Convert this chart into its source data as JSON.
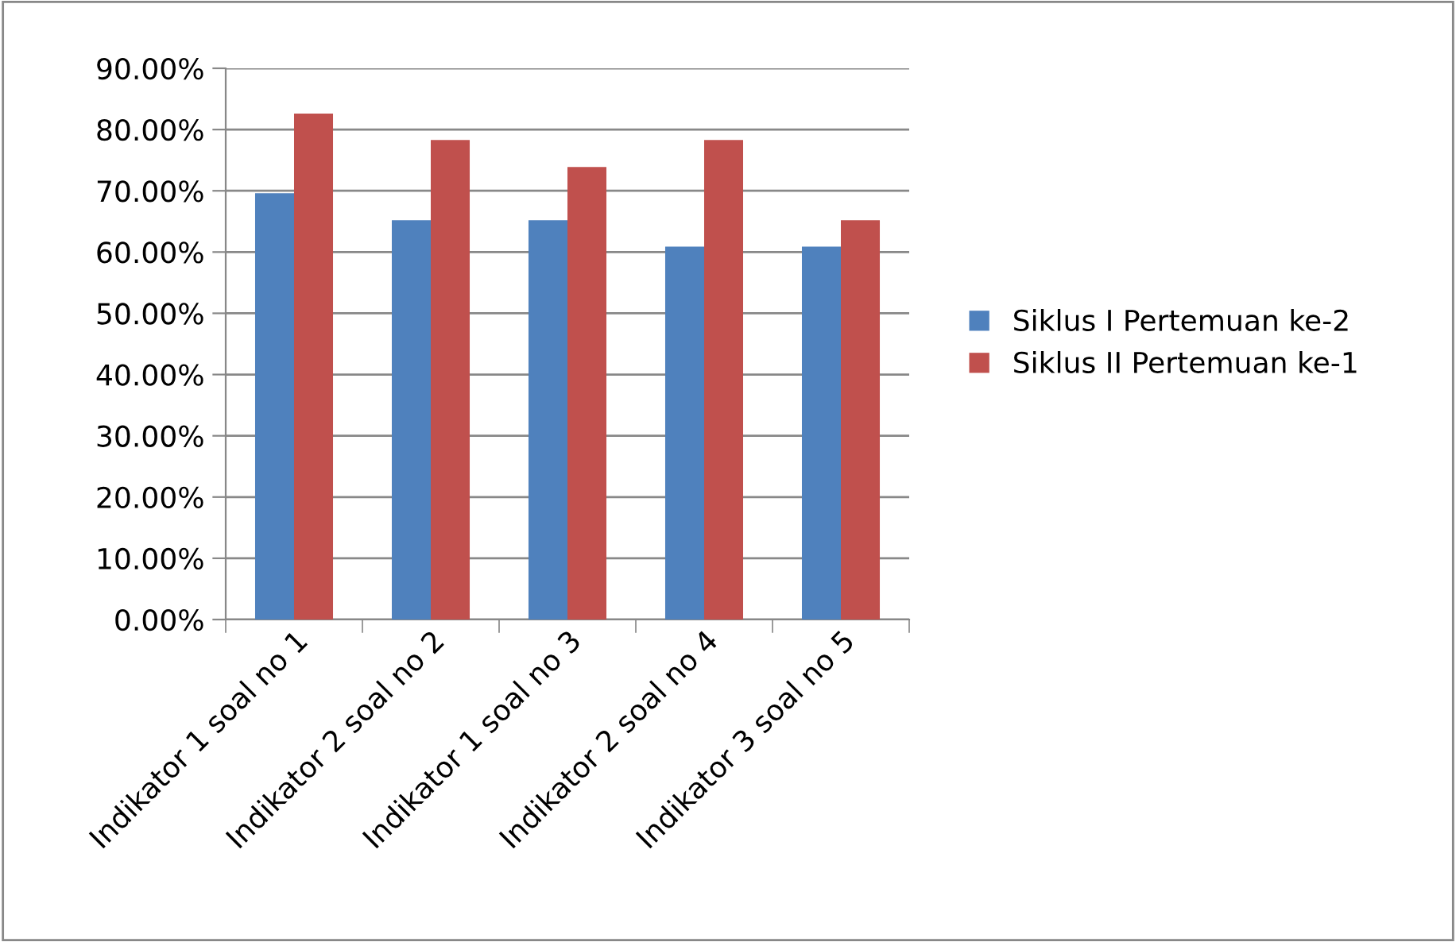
{
  "chart_data": {
    "type": "bar",
    "categories": [
      "Indikator 1 soal no 1",
      "Indikator 2 soal no 2",
      "Indikator 1 soal no 3",
      "Indikator 2 soal no 4",
      "Indikator 3 soal no 5"
    ],
    "series": [
      {
        "name": "Siklus I Pertemuan ke-2",
        "color": "#4f81bd",
        "values": [
          69.6,
          65.2,
          65.2,
          60.9,
          60.9
        ]
      },
      {
        "name": "Siklus II Pertemuan ke-1",
        "color": "#c0504d",
        "values": [
          82.6,
          78.3,
          73.9,
          78.3,
          65.2
        ]
      }
    ],
    "ylim": [
      0,
      90
    ],
    "yticks": [
      {
        "value": 0,
        "label": "0.00%"
      },
      {
        "value": 10,
        "label": "10.00%"
      },
      {
        "value": 20,
        "label": "20.00%"
      },
      {
        "value": 30,
        "label": "30.00%"
      },
      {
        "value": 40,
        "label": "40.00%"
      },
      {
        "value": 50,
        "label": "50.00%"
      },
      {
        "value": 60,
        "label": "60.00%"
      },
      {
        "value": 70,
        "label": "70.00%"
      },
      {
        "value": 80,
        "label": "80.00%"
      },
      {
        "value": 90,
        "label": "90.00%"
      }
    ],
    "grid": "y",
    "legend": "right"
  }
}
